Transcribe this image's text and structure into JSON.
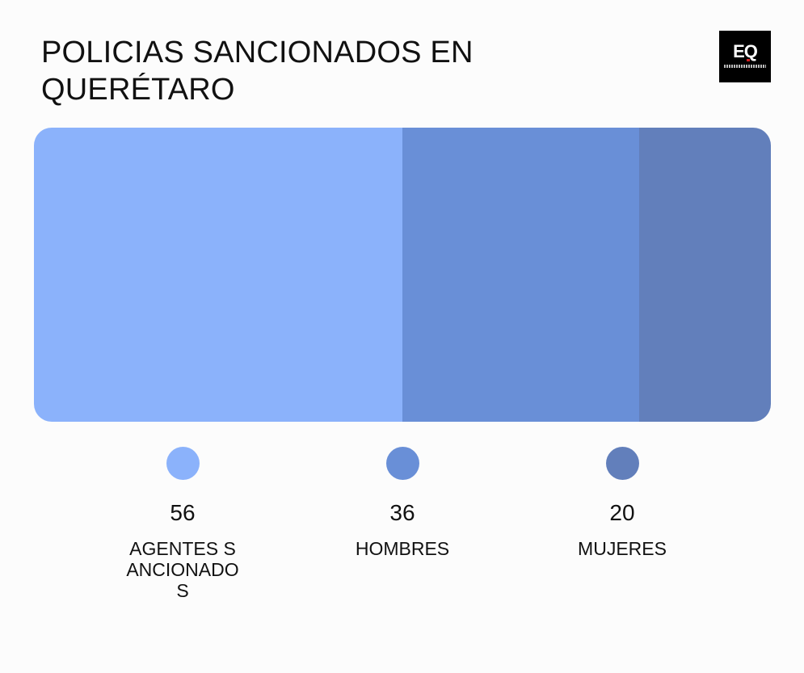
{
  "header": {
    "title": "POLICIAS SANCIONADOS EN QUERÉTARO",
    "logo_text": "EQ"
  },
  "chart_data": {
    "type": "bar",
    "orientation": "stacked-horizontal-proportion",
    "title": "POLICIAS SANCIONADOS EN QUERÉTARO",
    "categories": [
      "AGENTES SANCIONADOS",
      "HOMBRES",
      "MUJERES"
    ],
    "values": [
      56,
      36,
      20
    ],
    "colors": [
      "#8bb2fb",
      "#698fd7",
      "#627fbb"
    ],
    "legend_position": "bottom"
  },
  "legend": [
    {
      "value": "56",
      "label": "AGENTES SANCIONADOS",
      "color": "#8bb2fb"
    },
    {
      "value": "36",
      "label": "HOMBRES",
      "color": "#698fd7"
    },
    {
      "value": "20",
      "label": "MUJERES",
      "color": "#627fbb"
    }
  ]
}
